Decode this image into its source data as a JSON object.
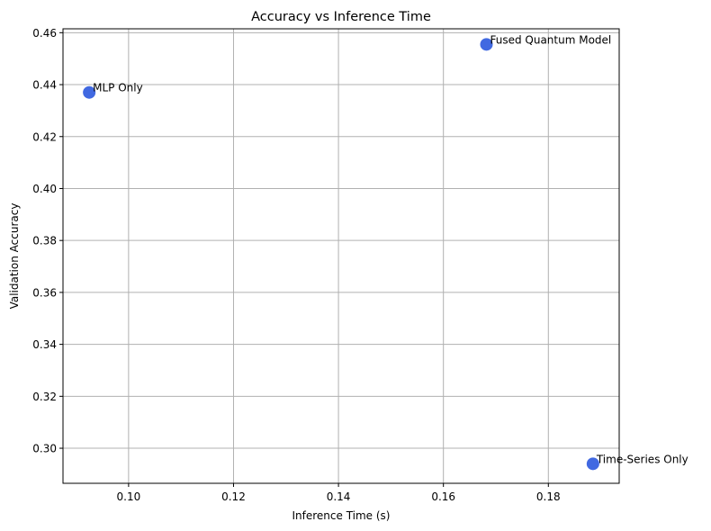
{
  "chart_data": {
    "type": "scatter",
    "title": "Accuracy vs Inference Time",
    "xlabel": "Inference Time (s)",
    "ylabel": "Validation Accuracy",
    "xlim": [
      0.0875,
      0.1935
    ],
    "ylim": [
      0.2865,
      0.4615
    ],
    "x_ticks": [
      0.1,
      0.12,
      0.14,
      0.16,
      0.18
    ],
    "x_tick_labels": [
      "0.10",
      "0.12",
      "0.14",
      "0.16",
      "0.18"
    ],
    "y_ticks": [
      0.3,
      0.32,
      0.34,
      0.36,
      0.38,
      0.4,
      0.42,
      0.44,
      0.46
    ],
    "y_tick_labels": [
      "0.30",
      "0.32",
      "0.34",
      "0.36",
      "0.38",
      "0.40",
      "0.42",
      "0.44",
      "0.46"
    ],
    "grid": true,
    "marker_color": "#4169E1",
    "points": [
      {
        "label": "MLP Only",
        "x": 0.0925,
        "y": 0.437
      },
      {
        "label": "Fused Quantum Model",
        "x": 0.1682,
        "y": 0.4555
      },
      {
        "label": "Time-Series Only",
        "x": 0.1885,
        "y": 0.294
      }
    ]
  }
}
